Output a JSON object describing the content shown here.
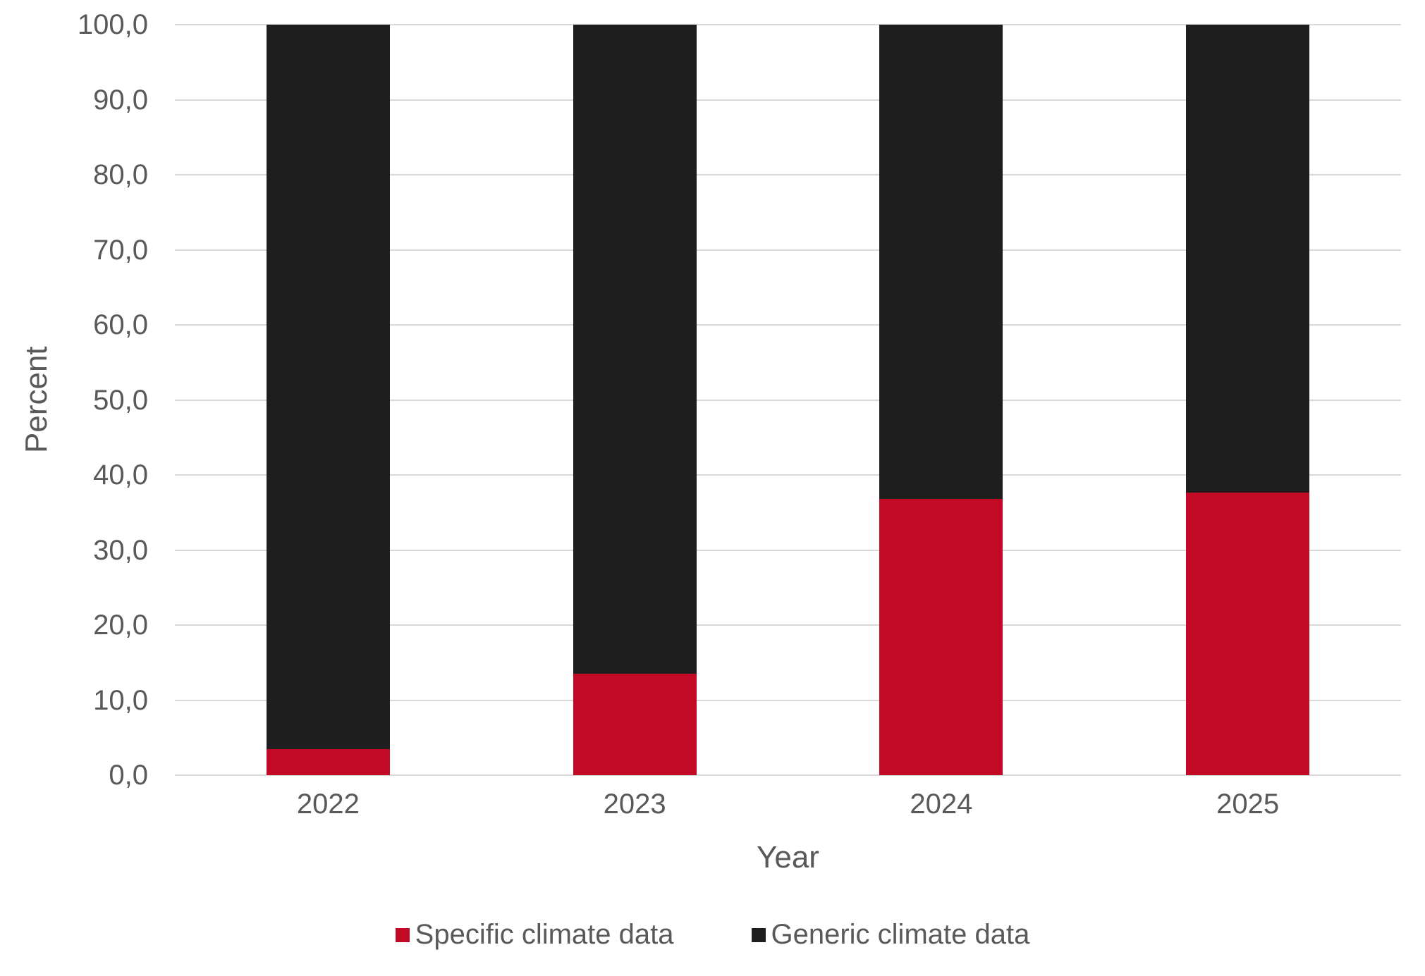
{
  "chart_data": {
    "type": "bar",
    "stacked": true,
    "orientation": "vertical",
    "categories": [
      "2022",
      "2023",
      "2024",
      "2025"
    ],
    "series": [
      {
        "name": "Specific climate data",
        "color": "#c20a26",
        "values": [
          3.5,
          13.5,
          36.8,
          37.7
        ]
      },
      {
        "name": "Generic climate data",
        "color": "#1e1e1e",
        "values": [
          96.5,
          86.5,
          63.2,
          62.3
        ]
      }
    ],
    "title": "",
    "xlabel": "Year",
    "ylabel": "Percent",
    "ylim": [
      0,
      100
    ],
    "ytick_values": [
      0,
      10,
      20,
      30,
      40,
      50,
      60,
      70,
      80,
      90,
      100
    ],
    "ytick_labels": [
      "0,0",
      "10,0",
      "20,0",
      "30,0",
      "40,0",
      "50,0",
      "60,0",
      "70,0",
      "80,0",
      "90,0",
      "100,0"
    ],
    "grid": true,
    "gridline_color": "#d9d9d9",
    "text_color": "#595959",
    "legend_position": "bottom"
  }
}
